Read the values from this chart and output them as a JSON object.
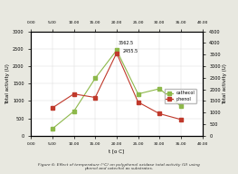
{
  "x": [
    5,
    10,
    15,
    20,
    25,
    30,
    35
  ],
  "catechol": [
    200,
    700,
    1650,
    2455.5,
    1200,
    1350,
    850
  ],
  "phenol": [
    1200,
    1800,
    1650,
    3562.5,
    1450,
    950,
    700
  ],
  "catechol_annotation": "2455.5",
  "phenol_annotation": "3562.5",
  "catechol_color": "#8db84a",
  "phenol_color": "#c0392b",
  "left_ylabel": "Total activity (U)",
  "right_ylabel": "Total activity (U)",
  "xlabel": "t [o C]",
  "left_ylim": [
    0,
    3000
  ],
  "right_ylim": [
    0,
    4500
  ],
  "left_yticks": [
    0,
    500,
    1000,
    1500,
    2000,
    2500,
    3000
  ],
  "right_yticks": [
    0,
    500,
    1000,
    1500,
    2000,
    2500,
    3000,
    3500,
    4000,
    4500
  ],
  "xticks_bottom": [
    0,
    5,
    10,
    15,
    20,
    25,
    30,
    35,
    40
  ],
  "xticks_top": [
    0,
    5,
    10,
    15,
    20,
    25,
    30,
    35,
    40
  ],
  "legend_labels": [
    "cathecol",
    "phenol"
  ],
  "plot_bg": "#ffffff",
  "fig_bg": "#e8e8e0",
  "figure_caption": "Figure 6: Effect of temperature (°C) on polyphenol oxidase total activity (U) using\nphenol and catechol as substrates."
}
